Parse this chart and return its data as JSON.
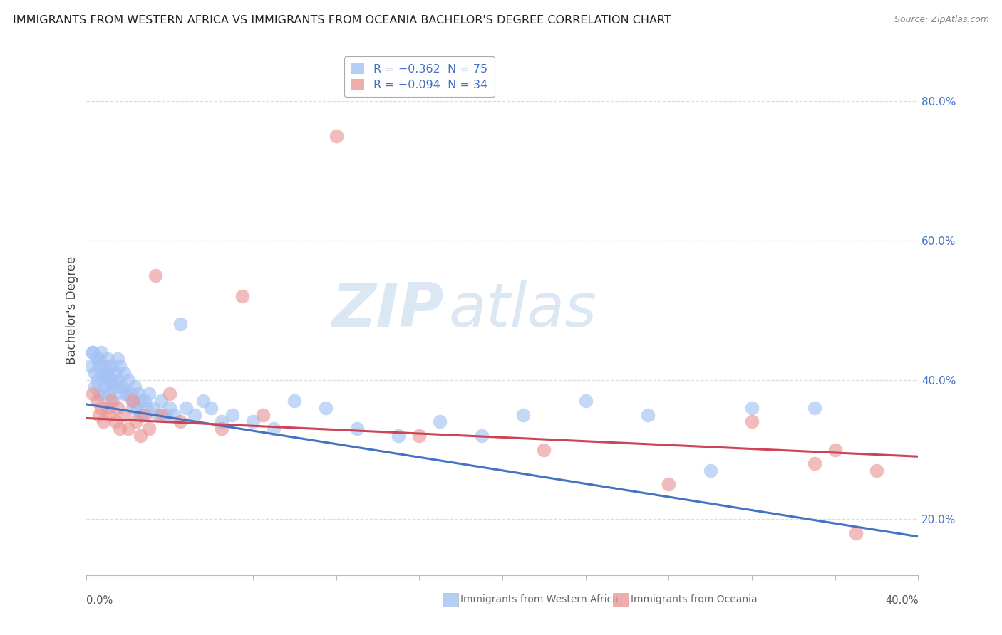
{
  "title": "IMMIGRANTS FROM WESTERN AFRICA VS IMMIGRANTS FROM OCEANIA BACHELOR'S DEGREE CORRELATION CHART",
  "source": "Source: ZipAtlas.com",
  "ylabel": "Bachelor's Degree",
  "watermark_zip": "ZIP",
  "watermark_atlas": "atlas",
  "legend_entries": [
    {
      "label": "R = −0.362  N = 75",
      "color": "#a4c2f4"
    },
    {
      "label": "R = −0.094  N = 34",
      "color": "#ea9999"
    }
  ],
  "series1_color": "#a4c2f4",
  "series2_color": "#ea9999",
  "trendline1_color": "#4472c4",
  "trendline2_color": "#cc4455",
  "xmin": 0.0,
  "xmax": 0.4,
  "ymin": 0.12,
  "ymax": 0.88,
  "trendline1_x0": 0.0,
  "trendline1_x1": 0.4,
  "trendline1_y0": 0.365,
  "trendline1_y1": 0.175,
  "trendline2_x0": 0.0,
  "trendline2_x1": 0.4,
  "trendline2_y0": 0.345,
  "trendline2_y1": 0.29,
  "right_ytick_values": [
    0.2,
    0.4,
    0.6,
    0.8
  ],
  "right_ytick_labels": [
    "20.0%",
    "40.0%",
    "60.0%",
    "80.0%"
  ],
  "grid_color": "#dddddd",
  "bottom_legend_blue": "Immigrants from Western Africa",
  "bottom_legend_pink": "Immigrants from Oceania",
  "blue_points_x": [
    0.002,
    0.003,
    0.004,
    0.004,
    0.005,
    0.005,
    0.006,
    0.006,
    0.007,
    0.007,
    0.008,
    0.008,
    0.009,
    0.009,
    0.01,
    0.01,
    0.011,
    0.011,
    0.012,
    0.012,
    0.013,
    0.013,
    0.014,
    0.015,
    0.015,
    0.016,
    0.017,
    0.018,
    0.019,
    0.02,
    0.021,
    0.022,
    0.023,
    0.024,
    0.025,
    0.026,
    0.027,
    0.028,
    0.029,
    0.03,
    0.032,
    0.034,
    0.036,
    0.038,
    0.04,
    0.042,
    0.045,
    0.048,
    0.052,
    0.056,
    0.06,
    0.065,
    0.07,
    0.08,
    0.09,
    0.1,
    0.115,
    0.13,
    0.15,
    0.17,
    0.19,
    0.21,
    0.24,
    0.27,
    0.3,
    0.32,
    0.35,
    0.003,
    0.006,
    0.009,
    0.012,
    0.015,
    0.018,
    0.022,
    0.026
  ],
  "blue_points_y": [
    0.42,
    0.44,
    0.41,
    0.39,
    0.43,
    0.4,
    0.42,
    0.38,
    0.44,
    0.41,
    0.4,
    0.38,
    0.42,
    0.39,
    0.43,
    0.41,
    0.4,
    0.38,
    0.42,
    0.4,
    0.39,
    0.37,
    0.41,
    0.43,
    0.4,
    0.42,
    0.39,
    0.41,
    0.38,
    0.4,
    0.38,
    0.37,
    0.39,
    0.36,
    0.38,
    0.37,
    0.35,
    0.37,
    0.36,
    0.38,
    0.36,
    0.35,
    0.37,
    0.35,
    0.36,
    0.35,
    0.48,
    0.36,
    0.35,
    0.37,
    0.36,
    0.34,
    0.35,
    0.34,
    0.33,
    0.37,
    0.36,
    0.33,
    0.32,
    0.34,
    0.32,
    0.35,
    0.37,
    0.35,
    0.27,
    0.36,
    0.36,
    0.44,
    0.43,
    0.41,
    0.4,
    0.39,
    0.38,
    0.36,
    0.35
  ],
  "pink_points_x": [
    0.003,
    0.005,
    0.006,
    0.007,
    0.008,
    0.01,
    0.011,
    0.012,
    0.014,
    0.015,
    0.016,
    0.018,
    0.02,
    0.022,
    0.024,
    0.026,
    0.028,
    0.03,
    0.033,
    0.036,
    0.04,
    0.045,
    0.065,
    0.075,
    0.085,
    0.12,
    0.16,
    0.22,
    0.28,
    0.32,
    0.35,
    0.36,
    0.37,
    0.38
  ],
  "pink_points_y": [
    0.38,
    0.37,
    0.35,
    0.36,
    0.34,
    0.36,
    0.35,
    0.37,
    0.34,
    0.36,
    0.33,
    0.35,
    0.33,
    0.37,
    0.34,
    0.32,
    0.35,
    0.33,
    0.55,
    0.35,
    0.38,
    0.34,
    0.33,
    0.52,
    0.35,
    0.75,
    0.32,
    0.3,
    0.25,
    0.34,
    0.28,
    0.3,
    0.18,
    0.27
  ]
}
